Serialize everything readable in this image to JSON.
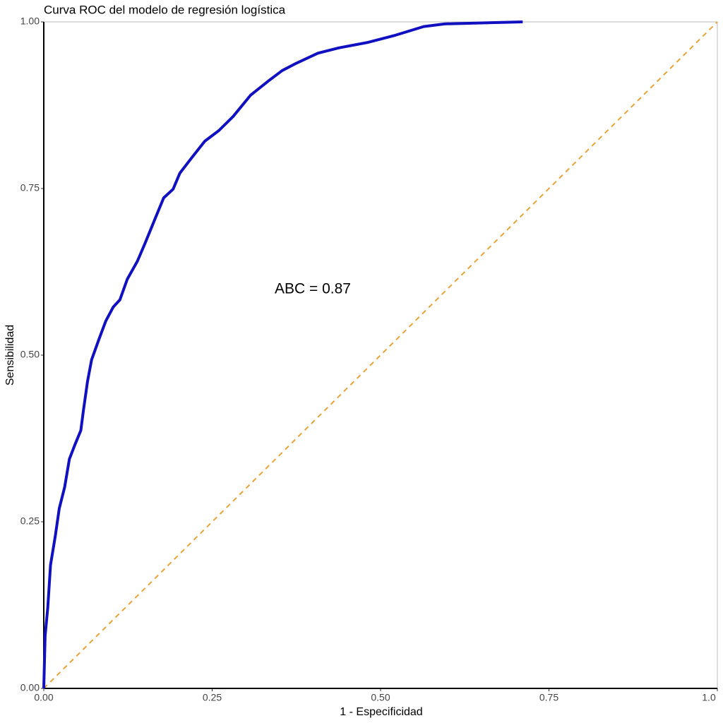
{
  "chart_data": {
    "type": "line",
    "title": "Curva ROC del modelo de regresión logística",
    "xlabel": "1 - Especificidad",
    "ylabel": "Sensibilidad",
    "annotation": "ABC = 0.87",
    "xlim": [
      0,
      1
    ],
    "ylim": [
      0,
      1
    ],
    "xticks": [
      {
        "value": 0,
        "label": "0.00"
      },
      {
        "value": 0.25,
        "label": "0.25"
      },
      {
        "value": 0.5,
        "label": "0.50"
      },
      {
        "value": 0.75,
        "label": "0.75"
      },
      {
        "value": 1,
        "label": "1.0"
      }
    ],
    "yticks": [
      {
        "value": 0,
        "label": "0.00"
      },
      {
        "value": 0.25,
        "label": "0.25"
      },
      {
        "value": 0.5,
        "label": "0.50"
      },
      {
        "value": 0.75,
        "label": "0.75"
      },
      {
        "value": 1,
        "label": "1.00"
      }
    ],
    "series": [
      {
        "color": "#1010c0",
        "style": "solid",
        "x": [
          0,
          0.002,
          0.006,
          0.01,
          0.017,
          0.023,
          0.031,
          0.038,
          0.046,
          0.055,
          0.059,
          0.065,
          0.071,
          0.082,
          0.092,
          0.103,
          0.113,
          0.124,
          0.139,
          0.15,
          0.165,
          0.178,
          0.192,
          0.202,
          0.218,
          0.239,
          0.26,
          0.281,
          0.307,
          0.333,
          0.354,
          0.375,
          0.407,
          0.438,
          0.48,
          0.522,
          0.564,
          0.595,
          0.669,
          0.711
        ],
        "values": [
          0,
          0.079,
          0.122,
          0.185,
          0.228,
          0.27,
          0.302,
          0.344,
          0.365,
          0.387,
          0.418,
          0.461,
          0.493,
          0.524,
          0.551,
          0.572,
          0.583,
          0.614,
          0.641,
          0.667,
          0.704,
          0.736,
          0.749,
          0.773,
          0.794,
          0.821,
          0.837,
          0.858,
          0.89,
          0.911,
          0.927,
          0.938,
          0.953,
          0.961,
          0.969,
          0.98,
          0.993,
          0.997,
          0.999,
          1.0
        ]
      },
      {
        "color": "#e8a33a",
        "style": "dashed",
        "x": [
          0,
          1
        ],
        "values": [
          0,
          1
        ]
      }
    ]
  }
}
